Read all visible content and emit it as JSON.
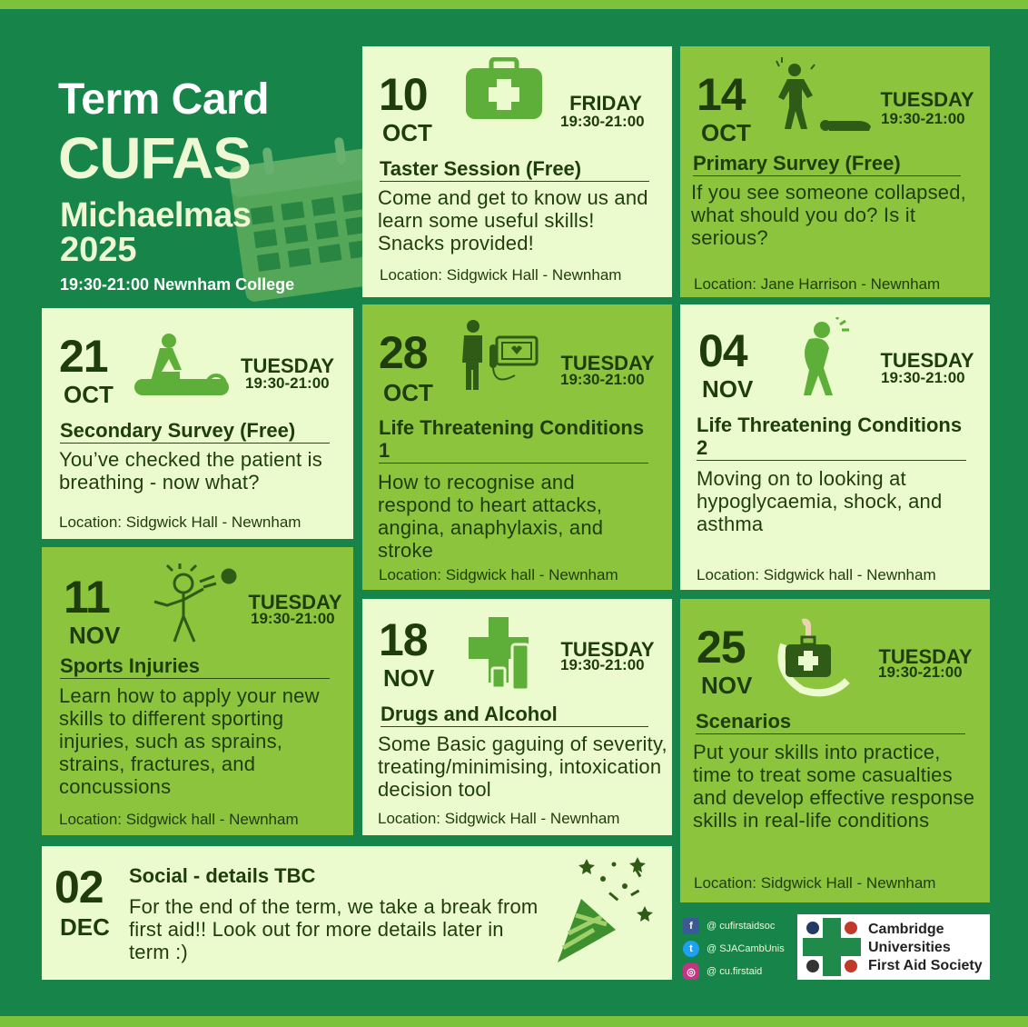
{
  "header": {
    "term_card": "Term Card",
    "society": "CUFAS",
    "term": "Michaelmas",
    "year": "2025",
    "subtitle": "19:30-21:00 Newnham College"
  },
  "events": [
    {
      "day": "10",
      "month": "OCT",
      "weekday": "FRIDAY",
      "time": "19:30-21:00",
      "title": "Taster Session (Free)",
      "description": "Come and get to know us and learn some useful skills! Snacks provided!",
      "location": "Location: Sidgwick Hall - Newnham",
      "icon": "first-aid-kit-icon"
    },
    {
      "day": "14",
      "month": "OCT",
      "weekday": "TUESDAY",
      "time": "19:30-21:00",
      "title": "Primary Survey (Free)",
      "description": "If you see someone collapsed, what should you do? Is it serious?",
      "location": "Location: Jane Harrison - Newnham",
      "icon": "collapsed-person-icon"
    },
    {
      "day": "21",
      "month": "OCT",
      "weekday": "TUESDAY",
      "time": "19:30-21:00",
      "title": "Secondary Survey (Free)",
      "description": "You’ve checked the patient is breathing - now what?",
      "location": "Location: Sidgwick Hall - Newnham",
      "icon": "cpr-icon"
    },
    {
      "day": "28",
      "month": "OCT",
      "weekday": "TUESDAY",
      "time": "19:30-21:00",
      "title": "Life Threatening Conditions 1",
      "description": "How to recognise and respond to heart attacks, angina, anaphylaxis, and stroke",
      "location": "Location: Sidgwick hall - Newnham",
      "icon": "heart-attack-icon"
    },
    {
      "day": "04",
      "month": "NOV",
      "weekday": "TUESDAY",
      "time": "19:30-21:00",
      "title": "Life Threatening Conditions 2",
      "description": "Moving on to looking at hypoglycaemia, shock, and asthma",
      "location": "Location: Sidgwick hall - Newnham",
      "icon": "unwell-person-icon"
    },
    {
      "day": "11",
      "month": "NOV",
      "weekday": "TUESDAY",
      "time": "19:30-21:00",
      "title": "Sports Injuries",
      "description": "Learn how to apply your new skills to different sporting injuries, such as sprains, strains, fractures, and concussions",
      "location": "Location: Sidgwick hall  - Newnham",
      "icon": "sports-injury-icon"
    },
    {
      "day": "18",
      "month": "NOV",
      "weekday": "TUESDAY",
      "time": "19:30-21:00",
      "title": "Drugs and Alcohol",
      "description": "Some Basic gaguing of severity, treating/minimising, intoxication decision tool",
      "location": "Location: Sidgwick Hall - Newnham",
      "icon": "medical-cross-bottle-icon"
    },
    {
      "day": "25",
      "month": "NOV",
      "weekday": "TUESDAY",
      "time": "19:30-21:00",
      "title": "Scenarios",
      "description": "Put your skills into practice, time to treat some casualties and develop effective response skills in real-life conditions",
      "location": "Location: Sidgwick Hall - Newnham",
      "icon": "hand-kit-icon"
    },
    {
      "day": "02",
      "month": "DEC",
      "title": "Social - details TBC",
      "description": "For the end of the term, we take a break from first aid!! Look out for more details later in term :)",
      "icon": "party-popper-icon"
    }
  ],
  "social": [
    {
      "platform": "facebook-icon",
      "handle": "@ cufirstaidsoc",
      "color": "#3b5998"
    },
    {
      "platform": "twitter-icon",
      "handle": "@ SJACambUnis",
      "color": "#1da1f2"
    },
    {
      "platform": "instagram-icon",
      "handle": "@ cu.firstaid",
      "color": "#c13584"
    }
  ],
  "logo": {
    "line1": "Cambridge",
    "line2": "Universities",
    "line3": "First Aid Society"
  },
  "colors": {
    "background": "#17844a",
    "accent_bar": "#7cc23a",
    "card_light": "#ecfbcd",
    "card_dark": "#8cc43e",
    "text_dark": "#1f3d0c"
  }
}
